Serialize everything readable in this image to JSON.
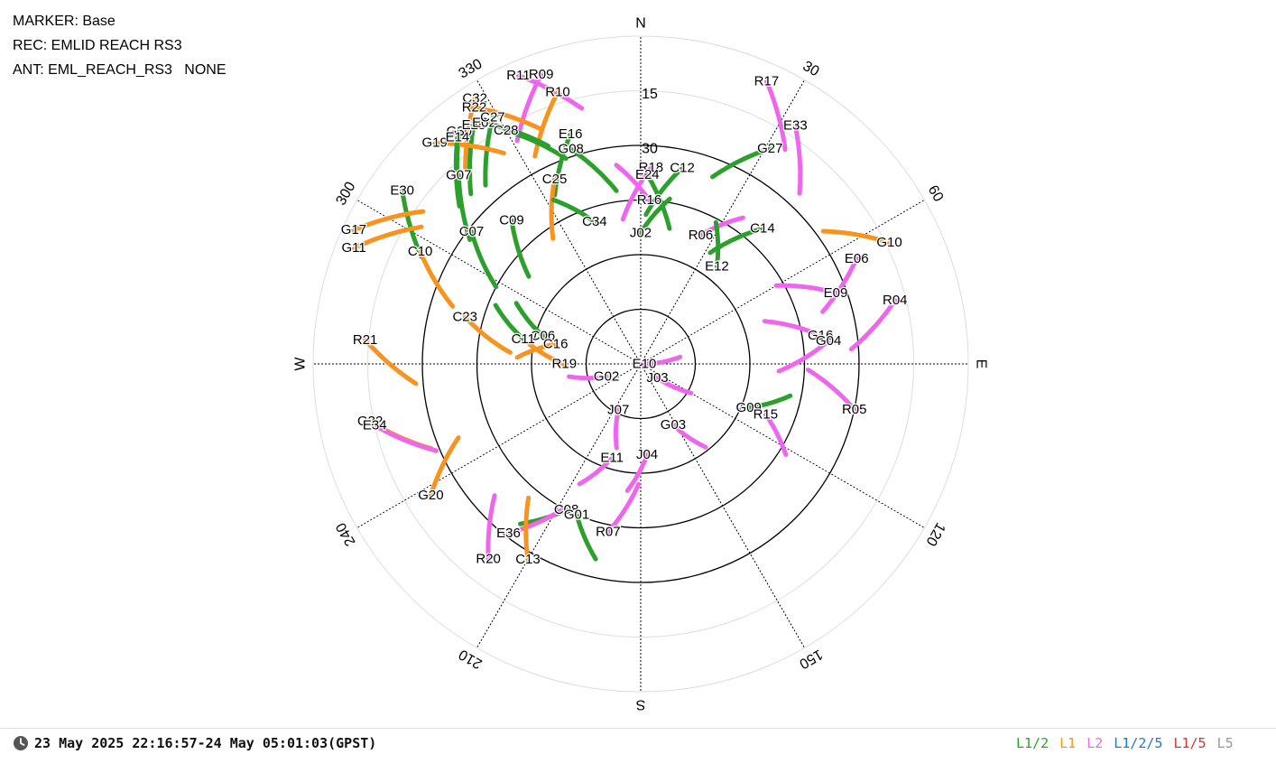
{
  "header": {
    "marker": "MARKER: Base",
    "receiver": "REC: EMLID REACH RS3",
    "antenna": "ANT: EML_REACH_RS3   NONE"
  },
  "status": {
    "time_range": "23 May 2025 22:16:57-24 May 05:01:03(GPST)",
    "clock_icon": "clock-icon"
  },
  "legend": [
    {
      "label": "L1/2",
      "color": "#2ca02c"
    },
    {
      "label": "L1",
      "color": "#f7931e"
    },
    {
      "label": "L2",
      "color": "#ee66ee"
    },
    {
      "label": "L1/2/5",
      "color": "#1f77d4"
    },
    {
      "label": "L1/5",
      "color": "#e03030"
    },
    {
      "label": "L5",
      "color": "#999999"
    }
  ],
  "chart_data": {
    "type": "scatter",
    "projection": "polar-skyplot",
    "directions": [
      "N",
      "E",
      "S",
      "W"
    ],
    "azimuth_ticks": [
      "30",
      "60",
      "120",
      "150",
      "210",
      "240",
      "300",
      "330"
    ],
    "elevation_ticks": [
      "15",
      "30"
    ],
    "elevation_rings": [
      0,
      15,
      30,
      45,
      60,
      75
    ],
    "grid": true,
    "satellites": [
      {
        "prn": "R11",
        "az": 337,
        "el": 4,
        "color": "#ee66ee"
      },
      {
        "prn": "R09",
        "az": 341,
        "el": 6,
        "color": "#ee66ee"
      },
      {
        "prn": "R10",
        "az": 343,
        "el": 12,
        "color": "#f7931e"
      },
      {
        "prn": "C32",
        "az": 328,
        "el": 4,
        "color": "#f7931e"
      },
      {
        "prn": "R22",
        "az": 327,
        "el": 6,
        "color": "#f7931e"
      },
      {
        "prn": "G30",
        "az": 322,
        "el": 9,
        "color": "#2ca02c"
      },
      {
        "prn": "E25",
        "az": 325,
        "el": 10,
        "color": "#2ca02c"
      },
      {
        "prn": "E02",
        "az": 327,
        "el": 11,
        "color": "#2ca02c"
      },
      {
        "prn": "C27",
        "az": 329,
        "el": 11,
        "color": "#2ca02c"
      },
      {
        "prn": "G19",
        "az": 317,
        "el": 7,
        "color": "#f7931e"
      },
      {
        "prn": "E14",
        "az": 321,
        "el": 10,
        "color": "#2ca02c"
      },
      {
        "prn": "C28",
        "az": 330,
        "el": 16,
        "color": "#2ca02c"
      },
      {
        "prn": "E16",
        "az": 343,
        "el": 24,
        "color": "#2ca02c"
      },
      {
        "prn": "E30",
        "az": 306,
        "el": 9,
        "color": "#2ca02c"
      },
      {
        "prn": "G07",
        "az": 316,
        "el": 18,
        "color": "#2ca02c"
      },
      {
        "prn": "G08",
        "az": 342,
        "el": 28,
        "color": "#2ca02c"
      },
      {
        "prn": "R18",
        "az": 3,
        "el": 36,
        "color": "#ee66ee"
      },
      {
        "prn": "E24",
        "az": 2,
        "el": 38,
        "color": "#2ca02c"
      },
      {
        "prn": "C12",
        "az": 12,
        "el": 35,
        "color": "#2ca02c"
      },
      {
        "prn": "G17",
        "az": 295,
        "el": 3,
        "color": "#f7931e"
      },
      {
        "prn": "C25",
        "az": 335,
        "el": 34,
        "color": "#f7931e"
      },
      {
        "prn": "R16",
        "az": 3,
        "el": 45,
        "color": "#ee66ee"
      },
      {
        "prn": "G11",
        "az": 292,
        "el": 5,
        "color": "#f7931e"
      },
      {
        "prn": "C07",
        "az": 308,
        "el": 31,
        "color": "#2ca02c"
      },
      {
        "prn": "C09",
        "az": 318,
        "el": 37,
        "color": "#2ca02c"
      },
      {
        "prn": "C34",
        "az": 342,
        "el": 49,
        "color": "#2ca02c"
      },
      {
        "prn": "J02",
        "az": 0,
        "el": 54,
        "color": "#2ca02c"
      },
      {
        "prn": "R06",
        "az": 25,
        "el": 51,
        "color": "#ee66ee"
      },
      {
        "prn": "C14",
        "az": 42,
        "el": 40,
        "color": "#2ca02c"
      },
      {
        "prn": "G27",
        "az": 31,
        "el": 21,
        "color": "#2ca02c"
      },
      {
        "prn": "E33",
        "az": 33,
        "el": 12,
        "color": "#ee66ee"
      },
      {
        "prn": "R17",
        "az": 24,
        "el": 5,
        "color": "#ee66ee"
      },
      {
        "prn": "C10",
        "az": 297,
        "el": 22,
        "color": "#f7931e"
      },
      {
        "prn": "E12",
        "az": 38,
        "el": 56,
        "color": "#2ca02c"
      },
      {
        "prn": "G10",
        "az": 64,
        "el": 14,
        "color": "#f7931e"
      },
      {
        "prn": "E06",
        "az": 64,
        "el": 24,
        "color": "#ee66ee"
      },
      {
        "prn": "E09",
        "az": 70,
        "el": 33,
        "color": "#ee66ee"
      },
      {
        "prn": "R04",
        "az": 76,
        "el": 18,
        "color": "#ee66ee"
      },
      {
        "prn": "C23",
        "az": 285,
        "el": 40,
        "color": "#f7931e"
      },
      {
        "prn": "C06",
        "az": 286,
        "el": 62,
        "color": "#2ca02c"
      },
      {
        "prn": "C11",
        "az": 282,
        "el": 57,
        "color": "#2ca02c"
      },
      {
        "prn": "G16",
        "az": 81,
        "el": 40,
        "color": "#ee66ee"
      },
      {
        "prn": "G04",
        "az": 83,
        "el": 38,
        "color": "#ee66ee"
      },
      {
        "prn": "R21",
        "az": 275,
        "el": 14,
        "color": "#f7931e"
      },
      {
        "prn": "C16",
        "az": 283,
        "el": 66,
        "color": "#f7931e"
      },
      {
        "prn": "R19",
        "az": 270,
        "el": 69,
        "color": "#f7931e"
      },
      {
        "prn": "E10",
        "az": 90,
        "el": 89,
        "color": "#ee66ee"
      },
      {
        "prn": "G02",
        "az": 250,
        "el": 80,
        "color": "#ee66ee"
      },
      {
        "prn": "J03",
        "az": 130,
        "el": 84,
        "color": "#ee66ee"
      },
      {
        "prn": "R05",
        "az": 102,
        "el": 30,
        "color": "#ee66ee"
      },
      {
        "prn": "G09",
        "az": 112,
        "el": 58,
        "color": "#2ca02c"
      },
      {
        "prn": "R15",
        "az": 112,
        "el": 53,
        "color": "#ee66ee"
      },
      {
        "prn": "G32",
        "az": 258,
        "el": 14,
        "color": "#f7931e"
      },
      {
        "prn": "E34",
        "az": 257,
        "el": 15,
        "color": "#ee66ee"
      },
      {
        "prn": "J07",
        "az": 206,
        "el": 76,
        "color": "#ee66ee"
      },
      {
        "prn": "G03",
        "az": 152,
        "el": 71,
        "color": "#ee66ee"
      },
      {
        "prn": "E11",
        "az": 197,
        "el": 63,
        "color": "#ee66ee"
      },
      {
        "prn": "J04",
        "az": 176,
        "el": 65,
        "color": "#ee66ee"
      },
      {
        "prn": "G20",
        "az": 238,
        "el": 22,
        "color": "#f7931e"
      },
      {
        "prn": "C08",
        "az": 207,
        "el": 45,
        "color": "#2ca02c"
      },
      {
        "prn": "G01",
        "az": 203,
        "el": 45,
        "color": "#2ca02c"
      },
      {
        "prn": "E36",
        "az": 218,
        "el": 31,
        "color": "#ee66ee"
      },
      {
        "prn": "R07",
        "az": 191,
        "el": 43,
        "color": "#ee66ee"
      },
      {
        "prn": "C13",
        "az": 210,
        "el": 28,
        "color": "#f7931e"
      },
      {
        "prn": "R20",
        "az": 218,
        "el": 22,
        "color": "#ee66ee"
      }
    ]
  }
}
